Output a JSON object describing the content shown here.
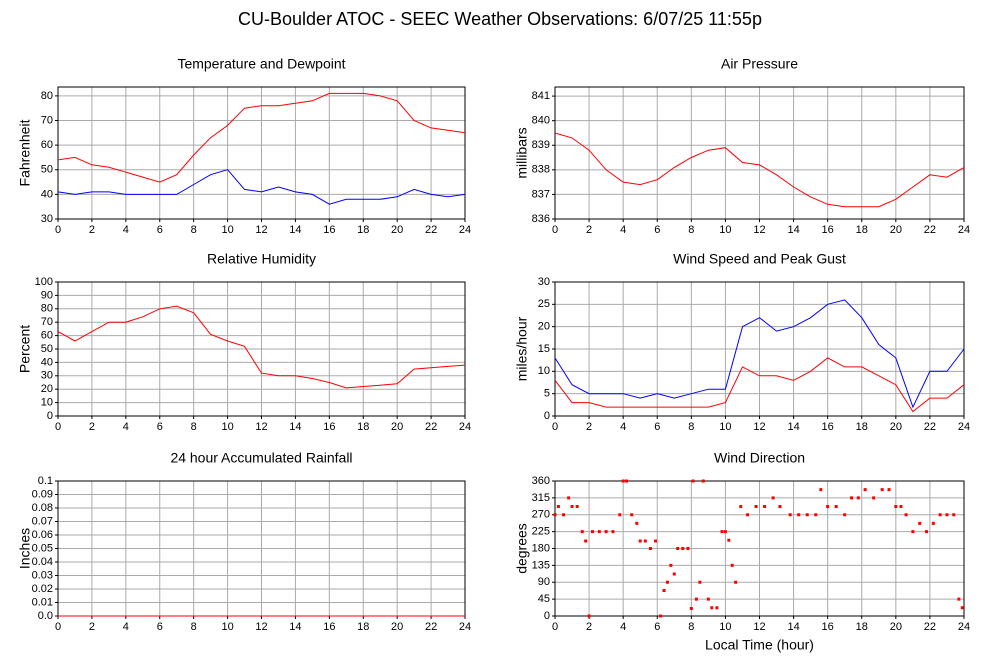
{
  "title": "CU-Boulder ATOC - SEEC Weather Observations: 6/07/25 11:55p",
  "chart_data": [
    {
      "type": "line",
      "title": "Temperature and Dewpoint",
      "ylabel": "Fahrenheit",
      "grid": true,
      "xlim": [
        0,
        24
      ],
      "xticks": [
        0,
        2,
        4,
        6,
        8,
        10,
        12,
        14,
        16,
        18,
        20,
        22,
        24
      ],
      "ylim": [
        30,
        83.6
      ],
      "yticks": [
        30,
        40,
        50,
        60,
        70,
        80
      ],
      "x": [
        0,
        1,
        2,
        3,
        4,
        5,
        6,
        7,
        8,
        9,
        10,
        11,
        12,
        13,
        14,
        15,
        16,
        17,
        18,
        19,
        20,
        21,
        22,
        23,
        24
      ],
      "series": [
        {
          "color": "#ff0000",
          "values": [
            54,
            55,
            52,
            51,
            49,
            47,
            45,
            48,
            56,
            63,
            68,
            75,
            76,
            76,
            77,
            78,
            81,
            81,
            81,
            80,
            78,
            70,
            67,
            66,
            65
          ]
        },
        {
          "color": "#0000ff",
          "values": [
            41,
            40,
            41,
            41,
            40,
            40,
            40,
            40,
            44,
            48,
            50,
            42,
            41,
            43,
            41,
            40,
            36,
            38,
            38,
            38,
            39,
            42,
            40,
            39,
            40
          ]
        }
      ]
    },
    {
      "type": "line",
      "title": "Air Pressure",
      "ylabel": "millibars",
      "grid": true,
      "xlim": [
        0,
        24
      ],
      "xticks": [
        0,
        2,
        4,
        6,
        8,
        10,
        12,
        14,
        16,
        18,
        20,
        22,
        24
      ],
      "ylim": [
        836,
        841.37
      ],
      "yticks": [
        836,
        837,
        838,
        839,
        840,
        841
      ],
      "x": [
        0,
        1,
        2,
        3,
        4,
        5,
        6,
        7,
        8,
        9,
        10,
        11,
        12,
        13,
        14,
        15,
        16,
        17,
        18,
        19,
        20,
        21,
        22,
        23,
        24
      ],
      "series": [
        {
          "color": "#ff0000",
          "values": [
            839.5,
            839.3,
            838.8,
            838.0,
            837.5,
            837.4,
            837.6,
            838.1,
            838.5,
            838.8,
            838.9,
            838.3,
            838.2,
            837.8,
            837.3,
            836.9,
            836.6,
            836.5,
            836.5,
            836.5,
            836.8,
            837.3,
            837.8,
            837.7,
            838.1
          ]
        }
      ]
    },
    {
      "type": "line",
      "title": "Relative Humidity",
      "ylabel": "Percent",
      "grid": true,
      "xlim": [
        0,
        24
      ],
      "xticks": [
        0,
        2,
        4,
        6,
        8,
        10,
        12,
        14,
        16,
        18,
        20,
        22,
        24
      ],
      "ylim": [
        0,
        100
      ],
      "yticks": [
        0,
        10,
        20,
        30,
        40,
        50,
        60,
        70,
        80,
        90,
        100
      ],
      "x": [
        0,
        1,
        2,
        3,
        4,
        5,
        6,
        7,
        8,
        9,
        10,
        11,
        12,
        13,
        14,
        15,
        16,
        17,
        18,
        19,
        20,
        21,
        22,
        23,
        24
      ],
      "series": [
        {
          "color": "#ff0000",
          "values": [
            63,
            56,
            63,
            70,
            70,
            74,
            80,
            82,
            77,
            61,
            56,
            52,
            32,
            30,
            30,
            28,
            25,
            21,
            22,
            23,
            24,
            35,
            36,
            37,
            38
          ]
        }
      ]
    },
    {
      "type": "line",
      "title": "Wind Speed and Peak Gust",
      "ylabel": "miles/hour",
      "grid": true,
      "xlim": [
        0,
        24
      ],
      "xticks": [
        0,
        2,
        4,
        6,
        8,
        10,
        12,
        14,
        16,
        18,
        20,
        22,
        24
      ],
      "ylim": [
        0,
        30
      ],
      "yticks": [
        0,
        5,
        10,
        15,
        20,
        25,
        30
      ],
      "x": [
        0,
        1,
        2,
        3,
        4,
        5,
        6,
        7,
        8,
        9,
        10,
        11,
        12,
        13,
        14,
        15,
        16,
        17,
        18,
        19,
        20,
        21,
        22,
        23,
        24
      ],
      "series": [
        {
          "color": "#0000ff",
          "values": [
            13,
            7,
            5,
            5,
            5,
            4,
            5,
            4,
            5,
            6,
            6,
            20,
            22,
            19,
            20,
            22,
            25,
            26,
            22,
            16,
            13,
            2,
            10,
            10,
            15
          ]
        },
        {
          "color": "#ff0000",
          "values": [
            8,
            3,
            3,
            2,
            2,
            2,
            2,
            2,
            2,
            2,
            3,
            11,
            9,
            9,
            8,
            10,
            13,
            11,
            11,
            9,
            7,
            1,
            4,
            4,
            7
          ]
        }
      ]
    },
    {
      "type": "line",
      "title": "24 hour Accumulated Rainfall",
      "ylabel": "Inches",
      "grid": true,
      "xlim": [
        0,
        24
      ],
      "xticks": [
        0,
        2,
        4,
        6,
        8,
        10,
        12,
        14,
        16,
        18,
        20,
        22,
        24
      ],
      "ylim": [
        0,
        0.1
      ],
      "yticks": [
        {
          "value": 0,
          "label": "0.0"
        },
        0.01,
        0.02,
        0.03,
        0.04,
        0.05,
        0.06,
        0.07,
        0.08,
        0.09,
        0.1
      ],
      "x": [
        0,
        1,
        2,
        3,
        4,
        5,
        6,
        7,
        8,
        9,
        10,
        11,
        12,
        13,
        14,
        15,
        16,
        17,
        18,
        19,
        20,
        21,
        22,
        23,
        24
      ],
      "series": [
        {
          "color": "#ff0000",
          "values": [
            0,
            0,
            0,
            0,
            0,
            0,
            0,
            0,
            0,
            0,
            0,
            0,
            0,
            0,
            0,
            0,
            0,
            0,
            0,
            0,
            0,
            0,
            0,
            0,
            0
          ]
        }
      ]
    },
    {
      "type": "scatter",
      "title": "Wind Direction",
      "ylabel": "degrees",
      "xlabel": "Local Time (hour)",
      "grid": true,
      "xlim": [
        0,
        24
      ],
      "xticks": [
        0,
        2,
        4,
        6,
        8,
        10,
        12,
        14,
        16,
        18,
        20,
        22,
        24
      ],
      "ylim": [
        0,
        360
      ],
      "yticks": [
        0,
        45,
        90,
        135,
        180,
        225,
        270,
        315,
        360
      ],
      "x": [
        0,
        0.2,
        0.5,
        0.8,
        1,
        1.3,
        1.6,
        1.8,
        2,
        2.2,
        2.6,
        3,
        3.4,
        3.8,
        4,
        4.2,
        4.5,
        4.8,
        5,
        5.3,
        5.6,
        5.9,
        6.2,
        6.4,
        6.6,
        6.8,
        7,
        7.2,
        7.5,
        7.8,
        8,
        8.1,
        8.3,
        8.5,
        8.7,
        9,
        9.2,
        9.5,
        9.8,
        10,
        10.2,
        10.4,
        10.6,
        10.9,
        11.3,
        11.8,
        12.3,
        12.8,
        13.2,
        13.8,
        14.3,
        14.8,
        15.3,
        15.6,
        16,
        16.5,
        17,
        17.4,
        17.8,
        18.2,
        18.7,
        19.2,
        19.6,
        20,
        20.3,
        20.6,
        21,
        21.4,
        21.8,
        22.2,
        22.6,
        23,
        23.4,
        23.7,
        23.9
      ],
      "series": [
        {
          "color": "#ff0000",
          "values": [
            270,
            292,
            270,
            315,
            292,
            292,
            225,
            200,
            0,
            225,
            225,
            225,
            225,
            270,
            360,
            360,
            270,
            247,
            200,
            200,
            180,
            200,
            0,
            68,
            90,
            135,
            112,
            180,
            180,
            180,
            20,
            360,
            45,
            90,
            360,
            45,
            22,
            22,
            225,
            225,
            202,
            135,
            90,
            292,
            270,
            292,
            292,
            315,
            292,
            270,
            270,
            270,
            270,
            337,
            292,
            292,
            270,
            315,
            315,
            337,
            315,
            337,
            337,
            292,
            292,
            270,
            225,
            247,
            225,
            247,
            270,
            270,
            270,
            45,
            22
          ]
        }
      ]
    }
  ]
}
